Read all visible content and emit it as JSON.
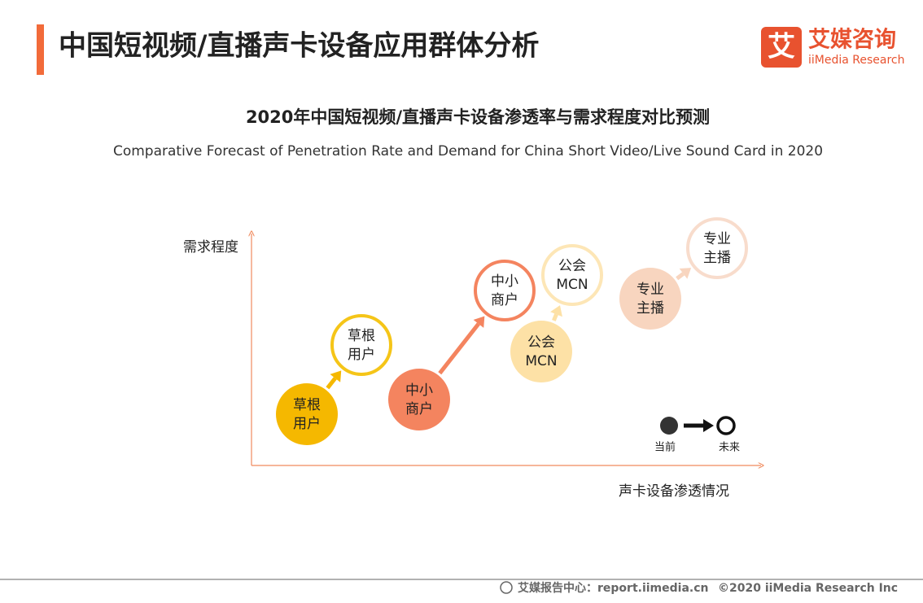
{
  "header": {
    "title": "中国短视频/直播声卡设备应用群体分析"
  },
  "logo": {
    "mark": "艾",
    "name": "艾媒咨询",
    "english": "iiMedia Research"
  },
  "chart": {
    "title": "2020年中国短视频/直播声卡设备渗透率与需求程度对比预测",
    "subtitle": "Comparative Forecast of Penetration Rate and Demand for China Short Video/Live Sound Card in 2020",
    "y_axis_label": "需求程度",
    "x_axis_label": "声卡设备渗透情况",
    "groups": [
      {
        "current": [
          "草根",
          "用户"
        ],
        "future": [
          "草根",
          "用户"
        ]
      },
      {
        "current": [
          "中小",
          "商户"
        ],
        "future": [
          "中小",
          "商户"
        ]
      },
      {
        "current": [
          "公会",
          "MCN"
        ],
        "future": [
          "公会",
          "MCN"
        ]
      },
      {
        "current": [
          "专业",
          "主播"
        ],
        "future": [
          "专业",
          "主播"
        ]
      }
    ],
    "legend": {
      "current": "当前",
      "future": "未来"
    }
  },
  "footer": {
    "source": "艾媒报告中心：report.iimedia.cn",
    "copyright": "©2020  iiMedia Research  Inc"
  }
}
